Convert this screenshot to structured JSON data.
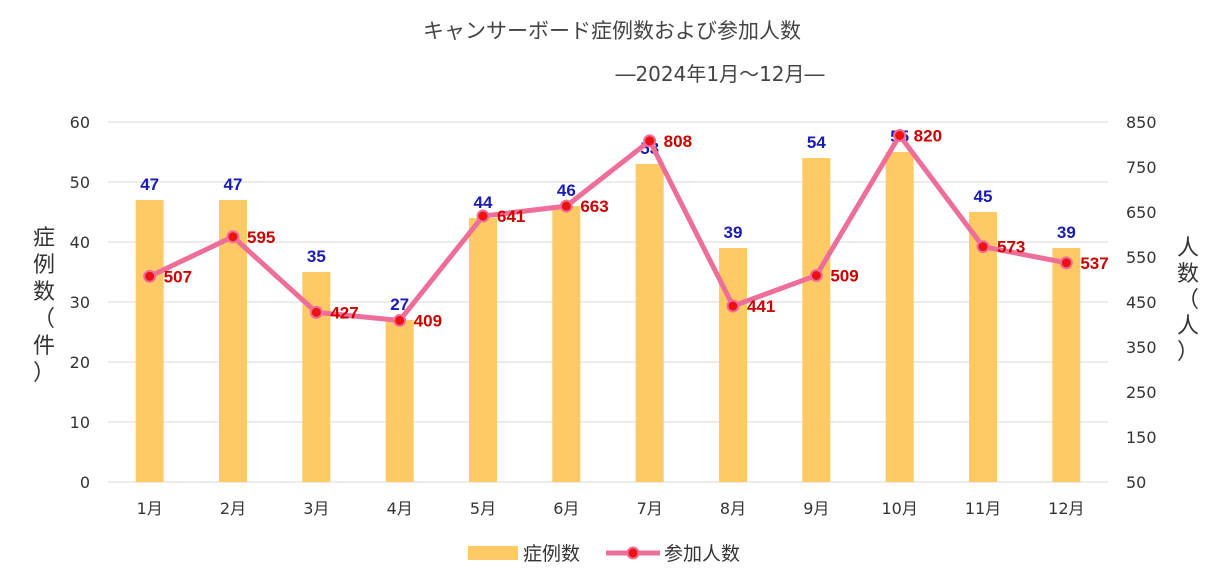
{
  "chart_data": {
    "type": "bar",
    "title": "キャンサーボード症例数および参加人数",
    "subtitle": "―2024年1月～12月―",
    "categories": [
      "1月",
      "2月",
      "3月",
      "4月",
      "5月",
      "6月",
      "7月",
      "8月",
      "9月",
      "10月",
      "11月",
      "12月"
    ],
    "series": [
      {
        "name": "症例数",
        "type": "bar",
        "axis": "left",
        "values": [
          47,
          47,
          35,
          27,
          44,
          46,
          53,
          39,
          54,
          55,
          45,
          39
        ]
      },
      {
        "name": "参加人数",
        "type": "line",
        "axis": "right",
        "values": [
          507,
          595,
          427,
          409,
          641,
          663,
          808,
          441,
          509,
          820,
          573,
          537
        ]
      }
    ],
    "y_left": {
      "label_chars": [
        "症",
        "例",
        "数",
        "（",
        "件",
        "）"
      ],
      "ylim": [
        0,
        60
      ],
      "ticks": [
        "0",
        "10",
        "20",
        "30",
        "40",
        "50",
        "60"
      ]
    },
    "y_right": {
      "label_chars": [
        "人",
        "数",
        "（",
        "人",
        "）"
      ],
      "ylim": [
        50,
        850
      ],
      "ticks": [
        "50",
        "150",
        "250",
        "350",
        "450",
        "550",
        "650",
        "750",
        "850"
      ]
    },
    "grid": true,
    "legend_position": "bottom",
    "colors": {
      "bar": "#FFC966",
      "line": "#EE6E9A",
      "marker": "#EE1111",
      "bar_label": "#1A1AB4",
      "line_label": "#CC0000",
      "grid": "#D9D9D9"
    }
  }
}
